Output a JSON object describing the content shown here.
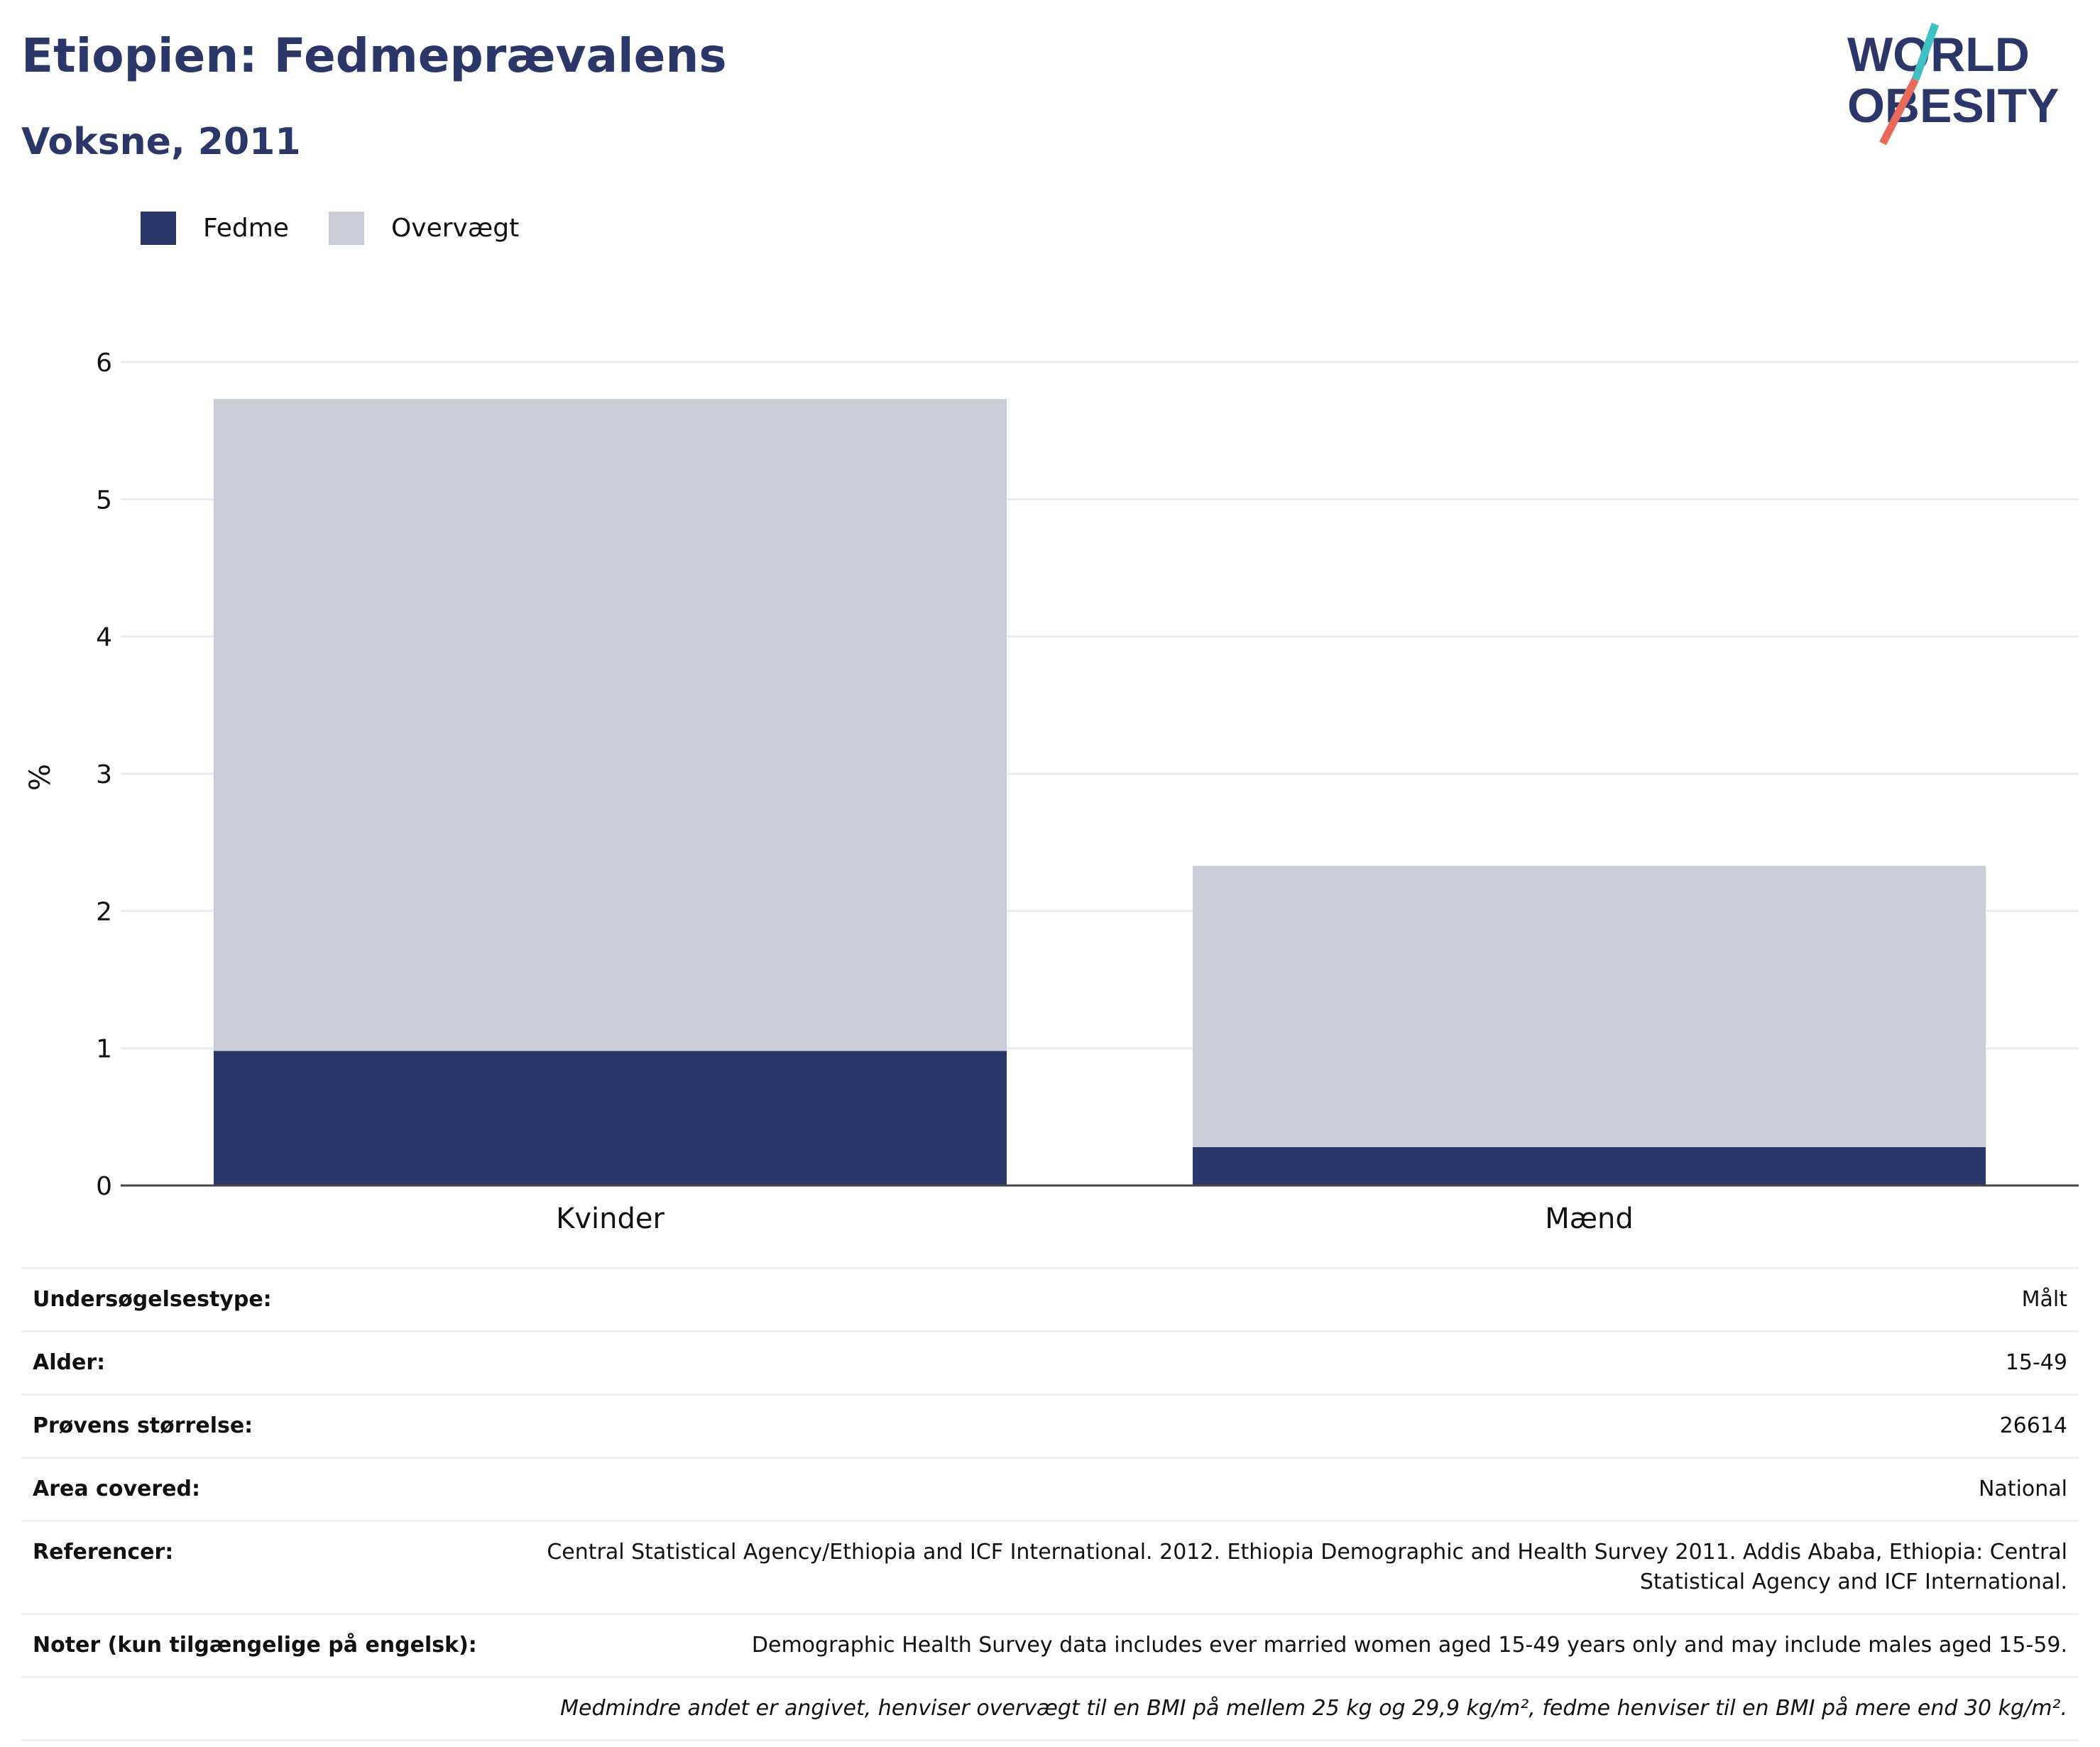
{
  "header": {
    "title": "Etiopien: Fedmeprævalens",
    "subtitle": "Voksne, 2011"
  },
  "logo": {
    "line1": "WORLD",
    "line2": "OBESITY"
  },
  "colors": {
    "fedme": "#2b3768",
    "overvaegt": "#cacdd8",
    "grid": "#ebebf2",
    "axis": "#444444",
    "brand": "#2b3768",
    "accent_teal": "#3ec0c4",
    "accent_coral": "#e86a5c"
  },
  "legend": [
    {
      "label": "Fedme",
      "color": "#2b3768"
    },
    {
      "label": "Overvægt",
      "color": "#cacdd8"
    }
  ],
  "chart_data": {
    "type": "bar",
    "stacked": true,
    "categories": [
      "Kvinder",
      "Mænd"
    ],
    "series": [
      {
        "name": "Fedme",
        "values": [
          0.98,
          0.28
        ]
      },
      {
        "name": "Overvægt",
        "values": [
          4.75,
          2.05
        ]
      }
    ],
    "ylabel": "%",
    "xlabel": "",
    "ylim": [
      0,
      6
    ],
    "yticks": [
      0,
      1,
      2,
      3,
      4,
      5,
      6
    ],
    "grid": true,
    "legend_position": "top-left"
  },
  "info": [
    {
      "label": "Undersøgelsestype:",
      "value": "Målt"
    },
    {
      "label": "Alder:",
      "value": "15-49"
    },
    {
      "label": "Prøvens størrelse:",
      "value": "26614"
    },
    {
      "label": "Area covered:",
      "value": "National"
    },
    {
      "label": "Referencer:",
      "value": "Central Statistical Agency/Ethiopia and ICF International. 2012. Ethiopia Demographic and Health Survey 2011. Addis Ababa, Ethiopia: Central Statistical Agency and ICF International."
    },
    {
      "label": "Noter (kun tilgængelige på engelsk):",
      "value": "Demographic Health Survey data includes ever married women aged 15-49 years only and may include males aged 15-59."
    }
  ],
  "footnote": "Medmindre andet er angivet, henviser overvægt til en BMI på mellem 25 kg og 29,9 kg/m², fedme henviser til en BMI på mere end 30 kg/m²."
}
